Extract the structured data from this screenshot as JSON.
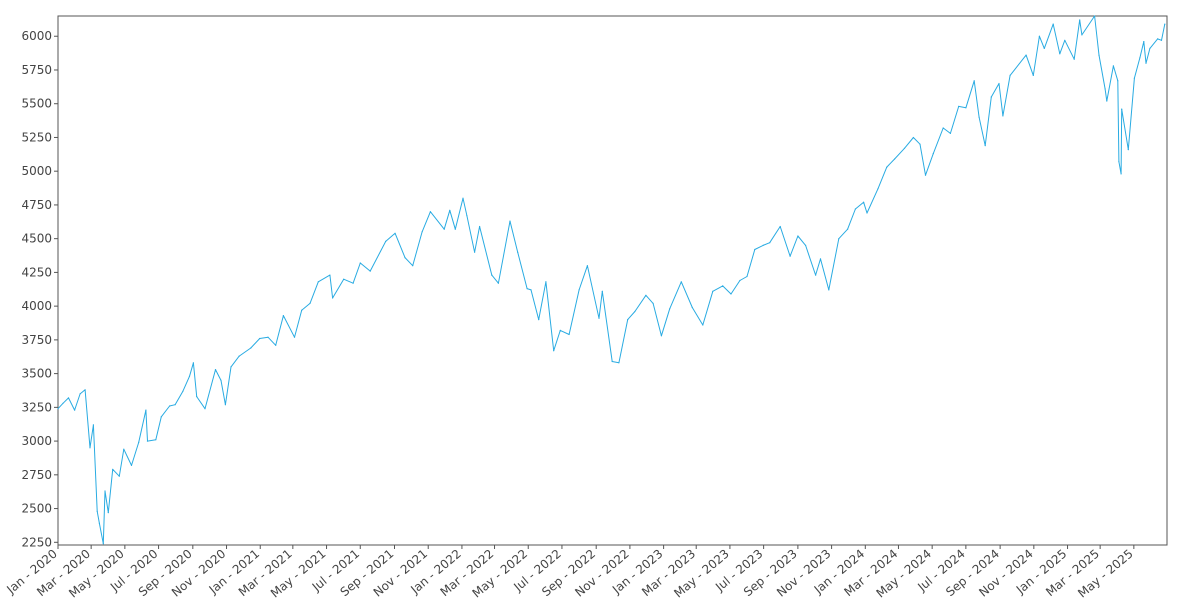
{
  "chart_data": {
    "type": "line",
    "title": "",
    "xlabel": "",
    "ylabel": "",
    "xlim": [
      "2020-01-01",
      "2025-06-30"
    ],
    "ylim": [
      2230,
      6150
    ],
    "grid": false,
    "line_color": "#29abe2",
    "y_ticks": [
      2250,
      2500,
      2750,
      3000,
      3250,
      3500,
      3750,
      4000,
      4250,
      4500,
      4750,
      5000,
      5250,
      5500,
      5750,
      6000
    ],
    "x_ticks": [
      {
        "date": "2020-01-01",
        "label": "Jan - 2020"
      },
      {
        "date": "2020-03-01",
        "label": "Mar - 2020"
      },
      {
        "date": "2020-05-01",
        "label": "May - 2020"
      },
      {
        "date": "2020-07-01",
        "label": "Jul - 2020"
      },
      {
        "date": "2020-09-01",
        "label": "Sep - 2020"
      },
      {
        "date": "2020-11-01",
        "label": "Nov - 2020"
      },
      {
        "date": "2021-01-01",
        "label": "Jan - 2021"
      },
      {
        "date": "2021-03-01",
        "label": "Mar - 2021"
      },
      {
        "date": "2021-05-01",
        "label": "May - 2021"
      },
      {
        "date": "2021-07-01",
        "label": "Jul - 2021"
      },
      {
        "date": "2021-09-01",
        "label": "Sep - 2021"
      },
      {
        "date": "2021-11-01",
        "label": "Nov - 2021"
      },
      {
        "date": "2022-01-01",
        "label": "Jan - 2022"
      },
      {
        "date": "2022-03-01",
        "label": "Mar - 2022"
      },
      {
        "date": "2022-05-01",
        "label": "May - 2022"
      },
      {
        "date": "2022-07-01",
        "label": "Jul - 2022"
      },
      {
        "date": "2022-09-01",
        "label": "Sep - 2022"
      },
      {
        "date": "2022-11-01",
        "label": "Nov - 2022"
      },
      {
        "date": "2023-01-01",
        "label": "Jan - 2023"
      },
      {
        "date": "2023-03-01",
        "label": "Mar - 2023"
      },
      {
        "date": "2023-05-01",
        "label": "May - 2023"
      },
      {
        "date": "2023-07-01",
        "label": "Jul - 2023"
      },
      {
        "date": "2023-09-01",
        "label": "Sep - 2023"
      },
      {
        "date": "2023-11-01",
        "label": "Nov - 2023"
      },
      {
        "date": "2024-01-01",
        "label": "Jan - 2024"
      },
      {
        "date": "2024-03-01",
        "label": "Mar - 2024"
      },
      {
        "date": "2024-05-01",
        "label": "May - 2024"
      },
      {
        "date": "2024-07-01",
        "label": "Jul - 2024"
      },
      {
        "date": "2024-09-01",
        "label": "Sep - 2024"
      },
      {
        "date": "2024-11-01",
        "label": "Nov - 2024"
      },
      {
        "date": "2025-01-01",
        "label": "Jan - 2025"
      },
      {
        "date": "2025-03-01",
        "label": "Mar - 2025"
      },
      {
        "date": "2025-05-01",
        "label": "May - 2025"
      }
    ],
    "series": [
      {
        "points": [
          [
            "2020-01-01",
            3240
          ],
          [
            "2020-01-10",
            3280
          ],
          [
            "2020-01-20",
            3320
          ],
          [
            "2020-01-31",
            3230
          ],
          [
            "2020-02-10",
            3350
          ],
          [
            "2020-02-19",
            3380
          ],
          [
            "2020-02-28",
            2950
          ],
          [
            "2020-03-05",
            3120
          ],
          [
            "2020-03-12",
            2480
          ],
          [
            "2020-03-16",
            2390
          ],
          [
            "2020-03-23",
            2240
          ],
          [
            "2020-03-26",
            2630
          ],
          [
            "2020-04-01",
            2470
          ],
          [
            "2020-04-09",
            2790
          ],
          [
            "2020-04-21",
            2740
          ],
          [
            "2020-04-29",
            2940
          ],
          [
            "2020-05-13",
            2820
          ],
          [
            "2020-05-26",
            2990
          ],
          [
            "2020-06-08",
            3230
          ],
          [
            "2020-06-11",
            3000
          ],
          [
            "2020-06-26",
            3010
          ],
          [
            "2020-07-06",
            3180
          ],
          [
            "2020-07-21",
            3260
          ],
          [
            "2020-07-31",
            3270
          ],
          [
            "2020-08-14",
            3370
          ],
          [
            "2020-08-26",
            3480
          ],
          [
            "2020-09-02",
            3580
          ],
          [
            "2020-09-08",
            3330
          ],
          [
            "2020-09-23",
            3240
          ],
          [
            "2020-10-12",
            3530
          ],
          [
            "2020-10-22",
            3450
          ],
          [
            "2020-10-30",
            3270
          ],
          [
            "2020-11-09",
            3550
          ],
          [
            "2020-11-24",
            3630
          ],
          [
            "2020-12-15",
            3690
          ],
          [
            "2020-12-31",
            3760
          ],
          [
            "2021-01-15",
            3770
          ],
          [
            "2021-01-29",
            3710
          ],
          [
            "2021-02-12",
            3930
          ],
          [
            "2021-03-04",
            3770
          ],
          [
            "2021-03-17",
            3970
          ],
          [
            "2021-04-01",
            4020
          ],
          [
            "2021-04-16",
            4180
          ],
          [
            "2021-05-07",
            4230
          ],
          [
            "2021-05-12",
            4060
          ],
          [
            "2021-06-01",
            4200
          ],
          [
            "2021-06-18",
            4170
          ],
          [
            "2021-07-01",
            4320
          ],
          [
            "2021-07-19",
            4260
          ],
          [
            "2021-08-16",
            4480
          ],
          [
            "2021-09-02",
            4540
          ],
          [
            "2021-09-20",
            4360
          ],
          [
            "2021-10-04",
            4300
          ],
          [
            "2021-10-21",
            4550
          ],
          [
            "2021-11-05",
            4700
          ],
          [
            "2021-11-30",
            4570
          ],
          [
            "2021-12-10",
            4710
          ],
          [
            "2021-12-20",
            4570
          ],
          [
            "2022-01-03",
            4800
          ],
          [
            "2022-01-10",
            4670
          ],
          [
            "2022-01-24",
            4400
          ],
          [
            "2022-02-02",
            4590
          ],
          [
            "2022-02-24",
            4230
          ],
          [
            "2022-03-08",
            4170
          ],
          [
            "2022-03-29",
            4630
          ],
          [
            "2022-04-12",
            4400
          ],
          [
            "2022-04-29",
            4130
          ],
          [
            "2022-05-06",
            4120
          ],
          [
            "2022-05-20",
            3900
          ],
          [
            "2022-06-02",
            4180
          ],
          [
            "2022-06-16",
            3670
          ],
          [
            "2022-06-28",
            3820
          ],
          [
            "2022-07-14",
            3790
          ],
          [
            "2022-08-01",
            4120
          ],
          [
            "2022-08-16",
            4300
          ],
          [
            "2022-09-06",
            3910
          ],
          [
            "2022-09-12",
            4110
          ],
          [
            "2022-09-30",
            3590
          ],
          [
            "2022-10-12",
            3580
          ],
          [
            "2022-10-28",
            3900
          ],
          [
            "2022-11-10",
            3960
          ],
          [
            "2022-11-30",
            4080
          ],
          [
            "2022-12-13",
            4020
          ],
          [
            "2022-12-28",
            3780
          ],
          [
            "2023-01-12",
            3980
          ],
          [
            "2023-02-02",
            4180
          ],
          [
            "2023-02-22",
            3990
          ],
          [
            "2023-03-13",
            3860
          ],
          [
            "2023-03-31",
            4110
          ],
          [
            "2023-04-18",
            4150
          ],
          [
            "2023-05-03",
            4090
          ],
          [
            "2023-05-19",
            4190
          ],
          [
            "2023-06-01",
            4220
          ],
          [
            "2023-06-15",
            4420
          ],
          [
            "2023-06-30",
            4450
          ],
          [
            "2023-07-12",
            4470
          ],
          [
            "2023-07-31",
            4590
          ],
          [
            "2023-08-18",
            4370
          ],
          [
            "2023-09-01",
            4520
          ],
          [
            "2023-09-15",
            4450
          ],
          [
            "2023-10-03",
            4230
          ],
          [
            "2023-10-12",
            4350
          ],
          [
            "2023-10-27",
            4120
          ],
          [
            "2023-11-14",
            4500
          ],
          [
            "2023-11-30",
            4570
          ],
          [
            "2023-12-14",
            4720
          ],
          [
            "2023-12-29",
            4770
          ],
          [
            "2024-01-04",
            4690
          ],
          [
            "2024-01-24",
            4870
          ],
          [
            "2024-02-09",
            5030
          ],
          [
            "2024-02-23",
            5090
          ],
          [
            "2024-03-12",
            5170
          ],
          [
            "2024-03-28",
            5250
          ],
          [
            "2024-04-09",
            5200
          ],
          [
            "2024-04-19",
            4970
          ],
          [
            "2024-05-03",
            5130
          ],
          [
            "2024-05-21",
            5320
          ],
          [
            "2024-06-03",
            5280
          ],
          [
            "2024-06-18",
            5480
          ],
          [
            "2024-07-01",
            5470
          ],
          [
            "2024-07-16",
            5670
          ],
          [
            "2024-07-25",
            5400
          ],
          [
            "2024-08-05",
            5190
          ],
          [
            "2024-08-16",
            5550
          ],
          [
            "2024-08-30",
            5650
          ],
          [
            "2024-09-06",
            5410
          ],
          [
            "2024-09-19",
            5710
          ],
          [
            "2024-10-18",
            5860
          ],
          [
            "2024-10-31",
            5710
          ],
          [
            "2024-11-11",
            6000
          ],
          [
            "2024-11-20",
            5910
          ],
          [
            "2024-12-06",
            6090
          ],
          [
            "2024-12-18",
            5870
          ],
          [
            "2024-12-27",
            5970
          ],
          [
            "2025-01-13",
            5830
          ],
          [
            "2025-01-23",
            6120
          ],
          [
            "2025-01-27",
            6010
          ],
          [
            "2025-02-19",
            6150
          ],
          [
            "2025-02-27",
            5860
          ],
          [
            "2025-03-10",
            5610
          ],
          [
            "2025-03-13",
            5520
          ],
          [
            "2025-03-25",
            5780
          ],
          [
            "2025-04-02",
            5670
          ],
          [
            "2025-04-04",
            5070
          ],
          [
            "2025-04-08",
            4980
          ],
          [
            "2025-04-09",
            5460
          ],
          [
            "2025-04-21",
            5160
          ],
          [
            "2025-05-02",
            5690
          ],
          [
            "2025-05-12",
            5840
          ],
          [
            "2025-05-19",
            5960
          ],
          [
            "2025-05-23",
            5800
          ],
          [
            "2025-05-30",
            5910
          ],
          [
            "2025-06-13",
            5980
          ],
          [
            "2025-06-20",
            5970
          ],
          [
            "2025-06-26",
            6090
          ]
        ]
      }
    ]
  }
}
